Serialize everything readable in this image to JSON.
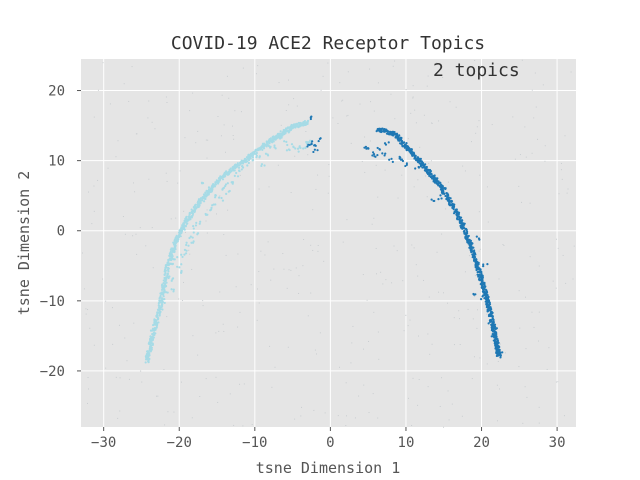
{
  "chart_data": {
    "type": "scatter",
    "title": "COVID-19 ACE2 Receptor Topics",
    "annotation": "2 topics",
    "xlabel": "tsne Dimension 1",
    "ylabel": "tsne Dimension 2",
    "xlim": [
      -33,
      32.5
    ],
    "ylim": [
      -28,
      24.5
    ],
    "xticks": [
      -30,
      -20,
      -10,
      0,
      10,
      20,
      30
    ],
    "yticks": [
      -20,
      -10,
      0,
      10,
      20
    ],
    "xtick_labels": [
      "−30",
      "−20",
      "−10",
      "0",
      "10",
      "20",
      "30"
    ],
    "ytick_labels": [
      "−20",
      "−10",
      "0",
      "10",
      "20"
    ],
    "grid": true,
    "background_color": "#e5e5e5",
    "grid_color": "#ffffff",
    "series": [
      {
        "color": "#a6dbe6",
        "curve": [
          [
            -24.3,
            -18.7
          ],
          [
            -23.5,
            -15
          ],
          [
            -22.5,
            -10.5
          ],
          [
            -21.5,
            -5
          ],
          [
            -20.5,
            -1.5
          ],
          [
            -19,
            1.5
          ],
          [
            -17,
            4.5
          ],
          [
            -14.5,
            7.5
          ],
          [
            -12,
            9.5
          ],
          [
            -9.5,
            11.5
          ],
          [
            -7,
            13.5
          ],
          [
            -5,
            14.8
          ],
          [
            -3,
            15.5
          ]
        ],
        "scatter": [
          [
            -22,
            -8
          ],
          [
            -21.5,
            -6.5
          ],
          [
            -21,
            -7
          ],
          [
            -20.5,
            -4
          ],
          [
            -19.5,
            -3.5
          ],
          [
            -19,
            -2
          ],
          [
            -18.5,
            -1
          ],
          [
            -17.8,
            -0.5
          ],
          [
            -18,
            0.5
          ],
          [
            -17.5,
            1
          ],
          [
            -16.5,
            2.5
          ],
          [
            -15.5,
            3.5
          ],
          [
            -15,
            5
          ],
          [
            -14.2,
            6
          ],
          [
            -13.8,
            6.5
          ],
          [
            -13,
            7
          ],
          [
            -12,
            8.5
          ],
          [
            -11.5,
            9
          ],
          [
            -10.5,
            10
          ],
          [
            -9.5,
            10.5
          ],
          [
            -8.5,
            11
          ],
          [
            -7.5,
            12
          ],
          [
            -6,
            12.5
          ],
          [
            -5,
            12.2
          ],
          [
            -4,
            12
          ],
          [
            -3,
            12.5
          ],
          [
            -2.5,
            12.8
          ],
          [
            -22.5,
            -11
          ],
          [
            -23,
            -13
          ],
          [
            -23.5,
            -14.5
          ],
          [
            -22.2,
            -10
          ],
          [
            -21.8,
            -9
          ],
          [
            -20,
            -5
          ],
          [
            -19.2,
            -3
          ],
          [
            -16,
            3
          ],
          [
            -17,
            4.5
          ],
          [
            -14.5,
            4.5
          ],
          [
            -12.5,
            8
          ],
          [
            -11,
            9.5
          ],
          [
            -8,
            11.8
          ],
          [
            -6.5,
            13
          ],
          [
            -5.5,
            11.5
          ],
          [
            -4.5,
            11.5
          ],
          [
            -3.5,
            11.8
          ],
          [
            -21,
            -4.5
          ],
          [
            -18.2,
            -1.8
          ],
          [
            -19.8,
            -6
          ],
          [
            -20.8,
            -8.5
          ],
          [
            -15.8,
            5.5
          ],
          [
            -16.8,
            6.8
          ],
          [
            -13.5,
            5.5
          ],
          [
            -9,
            9.5
          ],
          [
            -10,
            11
          ]
        ]
      },
      {
        "color": "#1f78b4",
        "curve": [
          [
            6.2,
            14.5
          ],
          [
            8.5,
            13.8
          ],
          [
            10.5,
            11.5
          ],
          [
            12.5,
            9
          ],
          [
            14.5,
            6.5
          ],
          [
            16.5,
            3
          ],
          [
            18,
            -0.5
          ],
          [
            19.2,
            -4
          ],
          [
            20,
            -7
          ],
          [
            20.8,
            -10
          ],
          [
            21.5,
            -13.5
          ],
          [
            22,
            -16
          ],
          [
            22.3,
            -18
          ]
        ],
        "scatter": [
          [
            -2.3,
            16.2
          ],
          [
            -2.5,
            12.5
          ],
          [
            -2,
            12
          ],
          [
            -1.5,
            13
          ],
          [
            -2.8,
            12.2
          ],
          [
            -2,
            11.5
          ],
          [
            4.5,
            12
          ],
          [
            5,
            11.5
          ],
          [
            5.5,
            11
          ],
          [
            6,
            10.5
          ],
          [
            6.5,
            11.8
          ],
          [
            7,
            11
          ],
          [
            7.5,
            12.5
          ],
          [
            8,
            10
          ],
          [
            9,
            10.5
          ],
          [
            9.5,
            10
          ],
          [
            10,
            9.5
          ],
          [
            11.5,
            9
          ],
          [
            13,
            8.5
          ],
          [
            13.5,
            4.5
          ],
          [
            14.5,
            4.8
          ],
          [
            15,
            6
          ],
          [
            17.5,
            1
          ],
          [
            19.5,
            -1
          ],
          [
            20.5,
            -5
          ],
          [
            20,
            -9.5
          ],
          [
            19.2,
            -9
          ],
          [
            21,
            -11
          ],
          [
            21.5,
            -15
          ],
          [
            21.2,
            -13
          ],
          [
            22,
            -17
          ],
          [
            22.5,
            -17.5
          ],
          [
            12,
            10
          ],
          [
            14,
            7
          ],
          [
            16,
            4
          ],
          [
            18.5,
            -2
          ],
          [
            20.3,
            -6.5
          ],
          [
            21.8,
            -14
          ]
        ]
      }
    ],
    "noise_color": "#c9cdd0"
  }
}
